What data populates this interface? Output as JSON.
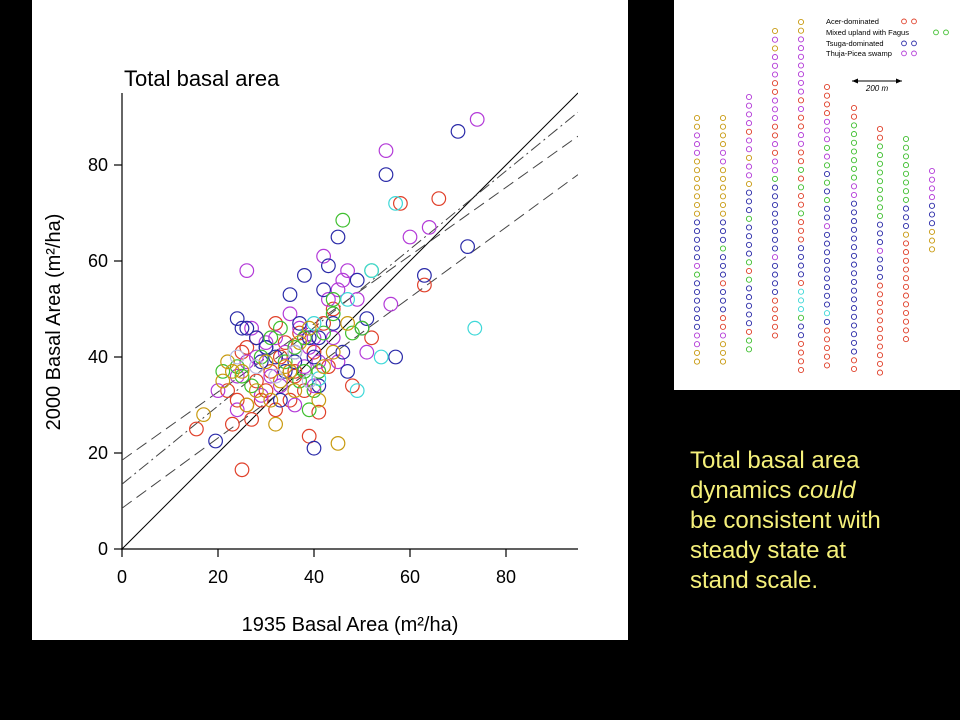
{
  "chart_data": {
    "type": "scatter",
    "title": "Total basal area",
    "xlabel": "1935 Basal Area (m²/ha)",
    "ylabel": "2000 Basal Area (m²/ha)",
    "xlim": [
      0,
      95
    ],
    "ylim": [
      0,
      95
    ],
    "x_ticks": [
      0,
      20,
      40,
      60,
      80
    ],
    "y_ticks": [
      0,
      20,
      40,
      60,
      80
    ],
    "grid": false,
    "marker": "open-circle",
    "palette": [
      "#e0402a",
      "#b33ad8",
      "#2a2aa8",
      "#3fbf2f",
      "#3fd8d8",
      "#c89a10",
      "#b8b8e0"
    ],
    "reference_line": {
      "kind": "1:1",
      "points": [
        [
          0,
          0
        ],
        [
          95,
          95
        ]
      ],
      "style": "solid"
    },
    "fit_lines": [
      {
        "points": [
          [
            0,
            13.5
          ],
          [
            95,
            91
          ]
        ],
        "style": "long-dash-dot"
      },
      {
        "points": [
          [
            0,
            18.5
          ],
          [
            95,
            86
          ]
        ],
        "style": "long-dash"
      },
      {
        "points": [
          [
            0,
            8.5
          ],
          [
            95,
            78
          ]
        ],
        "style": "long-dash"
      }
    ],
    "series": [
      {
        "points": [
          [
            15.5,
            25
          ],
          [
            22,
            33
          ],
          [
            23,
            26
          ],
          [
            24,
            31
          ],
          [
            25,
            16.5
          ],
          [
            25,
            41
          ],
          [
            26,
            30
          ],
          [
            27,
            27
          ],
          [
            28,
            35
          ],
          [
            30,
            33
          ],
          [
            31,
            37
          ],
          [
            32,
            29
          ],
          [
            33,
            40
          ],
          [
            34,
            43
          ],
          [
            35,
            31
          ],
          [
            36,
            37
          ],
          [
            37,
            45
          ],
          [
            38,
            33
          ],
          [
            39,
            23.5
          ],
          [
            40,
            41
          ],
          [
            41,
            28.5
          ],
          [
            42,
            47
          ],
          [
            43,
            38
          ],
          [
            44,
            50
          ],
          [
            48,
            34
          ],
          [
            52,
            44
          ],
          [
            58,
            72
          ],
          [
            63,
            55
          ],
          [
            66,
            73
          ],
          [
            26,
            42
          ],
          [
            32,
            47
          ],
          [
            29,
            31
          ],
          [
            35,
            37
          ],
          [
            28,
            44
          ],
          [
            36,
            36
          ]
        ]
      },
      {
        "points": [
          [
            20,
            33
          ],
          [
            24,
            36
          ],
          [
            24,
            29
          ],
          [
            26,
            39
          ],
          [
            27,
            46
          ],
          [
            28,
            40
          ],
          [
            29,
            32
          ],
          [
            30,
            43
          ],
          [
            31,
            36
          ],
          [
            33,
            34
          ],
          [
            34,
            41
          ],
          [
            35,
            49
          ],
          [
            36,
            30
          ],
          [
            37,
            46
          ],
          [
            38,
            38
          ],
          [
            39,
            42
          ],
          [
            40,
            44
          ],
          [
            41,
            39
          ],
          [
            42,
            61
          ],
          [
            43,
            52
          ],
          [
            44,
            44
          ],
          [
            45,
            39
          ],
          [
            46,
            56
          ],
          [
            47,
            58
          ],
          [
            49,
            52
          ],
          [
            51,
            41
          ],
          [
            55,
            83
          ],
          [
            56,
            51
          ],
          [
            60,
            65
          ],
          [
            64,
            67
          ],
          [
            74,
            89.5
          ],
          [
            26,
            58
          ],
          [
            40,
            34
          ],
          [
            45,
            54
          ],
          [
            32,
            44
          ]
        ]
      },
      {
        "points": [
          [
            19.5,
            22.5
          ],
          [
            24,
            48
          ],
          [
            25,
            46
          ],
          [
            26,
            46
          ],
          [
            28,
            44
          ],
          [
            29,
            39
          ],
          [
            30,
            42
          ],
          [
            32,
            40
          ],
          [
            33,
            31
          ],
          [
            34,
            37
          ],
          [
            35,
            53
          ],
          [
            36,
            41
          ],
          [
            37,
            47
          ],
          [
            38,
            57
          ],
          [
            39,
            44
          ],
          [
            40,
            21
          ],
          [
            40,
            40
          ],
          [
            41,
            34
          ],
          [
            42,
            54
          ],
          [
            43,
            59
          ],
          [
            44,
            47
          ],
          [
            45,
            65
          ],
          [
            46,
            41
          ],
          [
            47,
            37
          ],
          [
            49,
            56
          ],
          [
            50,
            46
          ],
          [
            51,
            48
          ],
          [
            55,
            78
          ],
          [
            57,
            40
          ],
          [
            63,
            57
          ],
          [
            70,
            87
          ],
          [
            72,
            63
          ],
          [
            41,
            44
          ],
          [
            30,
            42
          ],
          [
            36,
            39
          ]
        ]
      },
      {
        "points": [
          [
            21,
            37
          ],
          [
            24,
            38
          ],
          [
            25,
            36
          ],
          [
            27,
            34
          ],
          [
            29,
            40
          ],
          [
            31,
            44
          ],
          [
            33,
            46
          ],
          [
            34,
            39
          ],
          [
            36,
            42
          ],
          [
            37,
            35
          ],
          [
            38,
            37
          ],
          [
            39,
            29
          ],
          [
            40,
            33
          ],
          [
            41,
            37
          ],
          [
            42,
            45
          ],
          [
            44,
            49
          ],
          [
            46,
            68.5
          ],
          [
            48,
            45
          ],
          [
            50,
            46
          ],
          [
            52,
            58
          ],
          [
            44,
            52
          ],
          [
            38,
            44
          ]
        ]
      },
      {
        "points": [
          [
            41,
            35.5
          ],
          [
            47,
            52
          ],
          [
            49,
            33
          ],
          [
            52,
            58
          ],
          [
            54,
            40
          ],
          [
            57,
            72
          ],
          [
            73.5,
            46
          ],
          [
            40,
            47
          ]
        ]
      },
      {
        "points": [
          [
            17,
            28
          ],
          [
            21,
            35
          ],
          [
            23,
            37
          ],
          [
            25,
            37
          ],
          [
            26,
            30
          ],
          [
            28,
            33
          ],
          [
            30,
            39
          ],
          [
            31,
            31
          ],
          [
            32,
            26
          ],
          [
            34,
            38
          ],
          [
            35,
            37
          ],
          [
            36,
            33
          ],
          [
            37,
            43
          ],
          [
            39,
            46
          ],
          [
            41,
            31
          ],
          [
            42,
            38
          ],
          [
            44,
            41
          ],
          [
            45,
            22
          ],
          [
            47,
            47
          ],
          [
            22,
            39
          ],
          [
            33,
            35
          ]
        ]
      },
      {
        "points": [
          [
            24,
            40
          ],
          [
            28,
            38
          ],
          [
            32,
            36
          ],
          [
            36,
            41
          ],
          [
            39,
            35
          ]
        ]
      }
    ]
  },
  "map": {
    "legend": [
      {
        "label": "Acer-dominated",
        "color": "#e0402a"
      },
      {
        "label": "Mixed upland with Fagus",
        "color": "#3fbf2f"
      },
      {
        "label": "Tsuga-dominated",
        "color": "#2a2aa8"
      },
      {
        "label": "Thuja-Picea swamp",
        "color": "#b33ad8"
      }
    ],
    "scale_label": "200 m",
    "extra_colors": [
      "#c89a10",
      "#3fd8d8"
    ]
  },
  "caption": {
    "line1": "Total basal area",
    "line2a": "dynamics ",
    "line2b": "could",
    "line3": "be consistent with",
    "line4": "steady state at",
    "line5": "stand scale."
  }
}
